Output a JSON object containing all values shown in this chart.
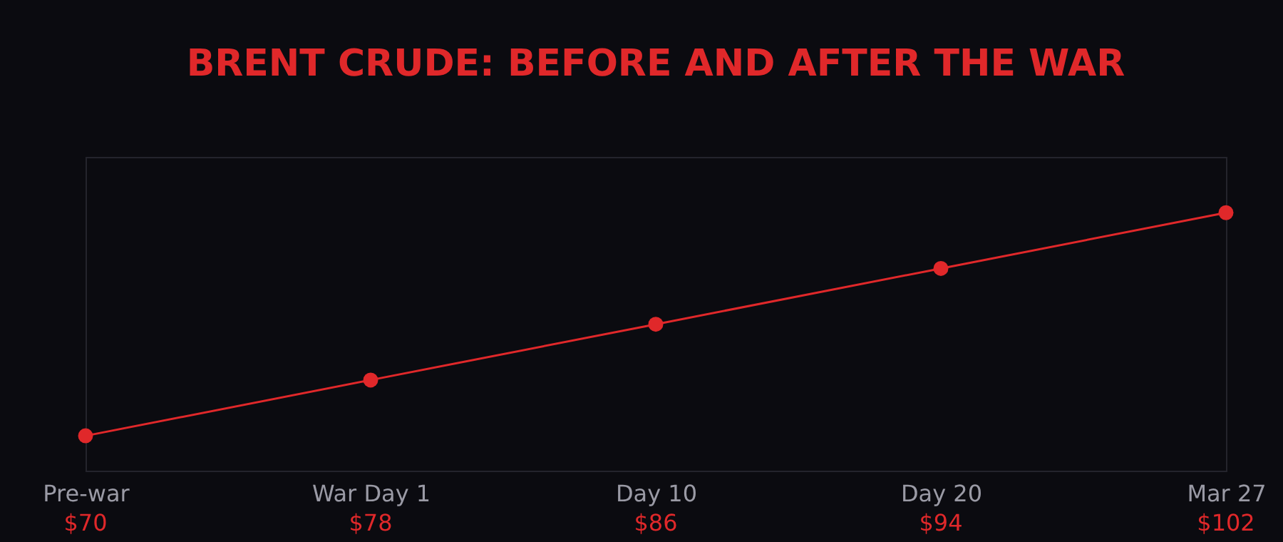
{
  "chart_data": {
    "type": "line",
    "title": "BRENT CRUDE: BEFORE AND AFTER THE WAR",
    "categories": [
      "Pre-war",
      "War Day 1",
      "Day 10",
      "Day 20",
      "Mar 27"
    ],
    "values": [
      70,
      78,
      86,
      94,
      102
    ],
    "value_labels": [
      "$70",
      "$78",
      "$86",
      "$94",
      "$102"
    ],
    "color": "#e0282a",
    "marker": "circle",
    "ylim": [
      65,
      110
    ],
    "tick_labels": "x"
  }
}
